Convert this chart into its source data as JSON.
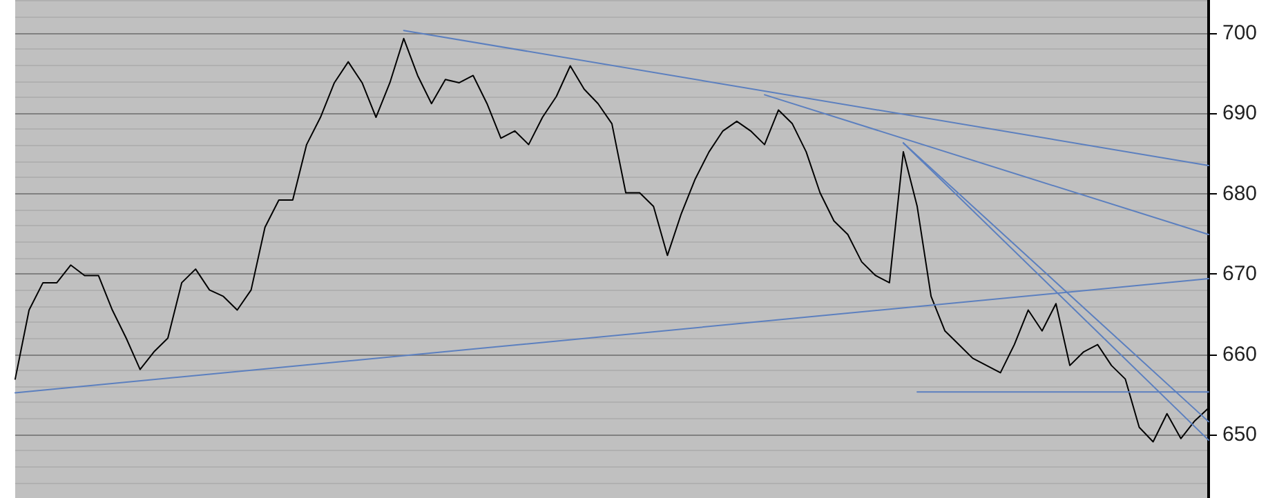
{
  "chart_data": {
    "type": "line",
    "categories": [
      null,
      null,
      null,
      null,
      null,
      null,
      null,
      null,
      null,
      null,
      null,
      null,
      null,
      null,
      null,
      null,
      null,
      null,
      null,
      null,
      null,
      null,
      null,
      null,
      null,
      null,
      null,
      null,
      null,
      null,
      null,
      null,
      null,
      null,
      null,
      null,
      null,
      null,
      null,
      null,
      null,
      null,
      null,
      null,
      null,
      null,
      null,
      null,
      null,
      null,
      null,
      null,
      null,
      null,
      null,
      null,
      null,
      null,
      null,
      null,
      null,
      null,
      null,
      null,
      null,
      null,
      null,
      null,
      null,
      null,
      null,
      null,
      null,
      null,
      null,
      null,
      null,
      null,
      null,
      null,
      null,
      null,
      null,
      null,
      null,
      null,
      null
    ],
    "series": [
      {
        "color": "#000000",
        "values": [
          656.9,
          665.5,
          668.9,
          668.9,
          671.1,
          669.8,
          669.8,
          665.5,
          662.0,
          658.1,
          660.3,
          662.0,
          668.9,
          670.6,
          668.0,
          667.2,
          665.5,
          668.0,
          675.8,
          679.2,
          679.2,
          686.1,
          689.5,
          693.8,
          696.4,
          693.8,
          689.5,
          693.8,
          699.3,
          694.7,
          691.2,
          694.2,
          693.8,
          694.7,
          691.2,
          686.9,
          687.8,
          686.1,
          689.5,
          692.1,
          695.9,
          693.0,
          691.2,
          688.7,
          680.1,
          680.1,
          678.4,
          672.3,
          677.5,
          681.8,
          685.2,
          687.8,
          689.0,
          687.8,
          686.1,
          690.4,
          688.7,
          685.2,
          680.1,
          676.6,
          674.9,
          671.5,
          669.8,
          668.9,
          685.2,
          678.4,
          667.2,
          662.9,
          661.2,
          659.5,
          658.6,
          657.7,
          661.2,
          665.5,
          662.9,
          666.3,
          658.6,
          660.3,
          661.2,
          658.6,
          656.9,
          650.9,
          649.1,
          652.6,
          649.5,
          651.7,
          653.3
        ]
      },
      {
        "color": "#5b7fbf",
        "values": [
          655.2,
          null,
          null,
          null,
          null,
          null,
          null,
          null,
          null,
          null,
          null,
          null,
          null,
          null,
          null,
          null,
          null,
          null,
          null,
          null,
          null,
          null,
          null,
          null,
          null,
          null,
          null,
          null,
          null,
          null,
          null,
          null,
          null,
          null,
          null,
          null,
          null,
          null,
          null,
          null,
          null,
          null,
          null,
          null,
          null,
          null,
          null,
          null,
          null,
          null,
          null,
          null,
          null,
          null,
          null,
          null,
          null,
          null,
          null,
          null,
          null,
          null,
          null,
          null,
          null,
          null,
          null,
          null,
          null,
          null,
          null,
          null,
          null,
          null,
          null,
          null,
          null,
          null,
          null,
          null,
          null,
          null,
          null,
          null,
          null,
          null,
          669.4
        ]
      },
      {
        "color": "#5b7fbf",
        "values": [
          null,
          null,
          null,
          null,
          null,
          null,
          null,
          null,
          null,
          null,
          null,
          null,
          null,
          null,
          null,
          null,
          null,
          null,
          null,
          null,
          null,
          null,
          null,
          null,
          null,
          null,
          null,
          null,
          700.3,
          null,
          null,
          null,
          null,
          null,
          null,
          null,
          null,
          null,
          null,
          null,
          null,
          null,
          null,
          null,
          null,
          null,
          null,
          null,
          null,
          null,
          null,
          null,
          null,
          null,
          null,
          null,
          null,
          null,
          null,
          null,
          null,
          null,
          null,
          null,
          null,
          null,
          null,
          null,
          null,
          null,
          null,
          null,
          null,
          null,
          null,
          null,
          null,
          null,
          null,
          null,
          null,
          null,
          null,
          null,
          null,
          null,
          683.5
        ]
      },
      {
        "color": "#5b7fbf",
        "values": [
          null,
          null,
          null,
          null,
          null,
          null,
          null,
          null,
          null,
          null,
          null,
          null,
          null,
          null,
          null,
          null,
          null,
          null,
          null,
          null,
          null,
          null,
          null,
          null,
          null,
          null,
          null,
          null,
          null,
          null,
          null,
          null,
          null,
          null,
          null,
          null,
          null,
          null,
          null,
          null,
          null,
          null,
          null,
          null,
          null,
          null,
          null,
          null,
          null,
          null,
          null,
          null,
          null,
          null,
          692.3,
          null,
          null,
          null,
          null,
          null,
          null,
          null,
          null,
          null,
          null,
          null,
          null,
          null,
          null,
          null,
          null,
          null,
          null,
          null,
          null,
          null,
          null,
          null,
          null,
          null,
          null,
          null,
          null,
          null,
          null,
          null,
          674.9
        ]
      },
      {
        "color": "#5b7fbf",
        "values": [
          null,
          null,
          null,
          null,
          null,
          null,
          null,
          null,
          null,
          null,
          null,
          null,
          null,
          null,
          null,
          null,
          null,
          null,
          null,
          null,
          null,
          null,
          null,
          null,
          null,
          null,
          null,
          null,
          null,
          null,
          null,
          null,
          null,
          null,
          null,
          null,
          null,
          null,
          null,
          null,
          null,
          null,
          null,
          null,
          null,
          null,
          null,
          null,
          null,
          null,
          null,
          null,
          null,
          null,
          null,
          null,
          null,
          null,
          null,
          null,
          null,
          null,
          null,
          null,
          686.3,
          null,
          null,
          null,
          null,
          null,
          null,
          null,
          null,
          null,
          null,
          null,
          null,
          null,
          null,
          null,
          null,
          null,
          null,
          null,
          null,
          null,
          651.6
        ]
      },
      {
        "color": "#5b7fbf",
        "values": [
          null,
          null,
          null,
          null,
          null,
          null,
          null,
          null,
          null,
          null,
          null,
          null,
          null,
          null,
          null,
          null,
          null,
          null,
          null,
          null,
          null,
          null,
          null,
          null,
          null,
          null,
          null,
          null,
          null,
          null,
          null,
          null,
          null,
          null,
          null,
          null,
          null,
          null,
          null,
          null,
          null,
          null,
          null,
          null,
          null,
          null,
          null,
          null,
          null,
          null,
          null,
          null,
          null,
          null,
          null,
          null,
          null,
          null,
          null,
          null,
          null,
          null,
          null,
          null,
          686.3,
          null,
          null,
          null,
          null,
          null,
          null,
          null,
          null,
          null,
          null,
          null,
          null,
          null,
          null,
          null,
          null,
          null,
          null,
          null,
          null,
          null,
          649.3
        ]
      },
      {
        "color": "#5b7fbf",
        "values": [
          null,
          null,
          null,
          null,
          null,
          null,
          null,
          null,
          null,
          null,
          null,
          null,
          null,
          null,
          null,
          null,
          null,
          null,
          null,
          null,
          null,
          null,
          null,
          null,
          null,
          null,
          null,
          null,
          null,
          null,
          null,
          null,
          null,
          null,
          null,
          null,
          null,
          null,
          null,
          null,
          null,
          null,
          null,
          null,
          null,
          null,
          null,
          null,
          null,
          null,
          null,
          null,
          null,
          null,
          null,
          null,
          null,
          null,
          null,
          null,
          null,
          null,
          null,
          null,
          null,
          655.3,
          null,
          null,
          null,
          null,
          null,
          null,
          null,
          null,
          null,
          null,
          null,
          null,
          null,
          null,
          null,
          null,
          null,
          null,
          null,
          null,
          655.3
        ]
      }
    ],
    "ylim": [
      642.1,
      704.1
    ],
    "yticks": [
      650,
      660,
      670,
      680,
      690,
      700
    ],
    "grid": "y",
    "tick_labels": "y",
    "marker": "none",
    "line_style": "solid"
  }
}
